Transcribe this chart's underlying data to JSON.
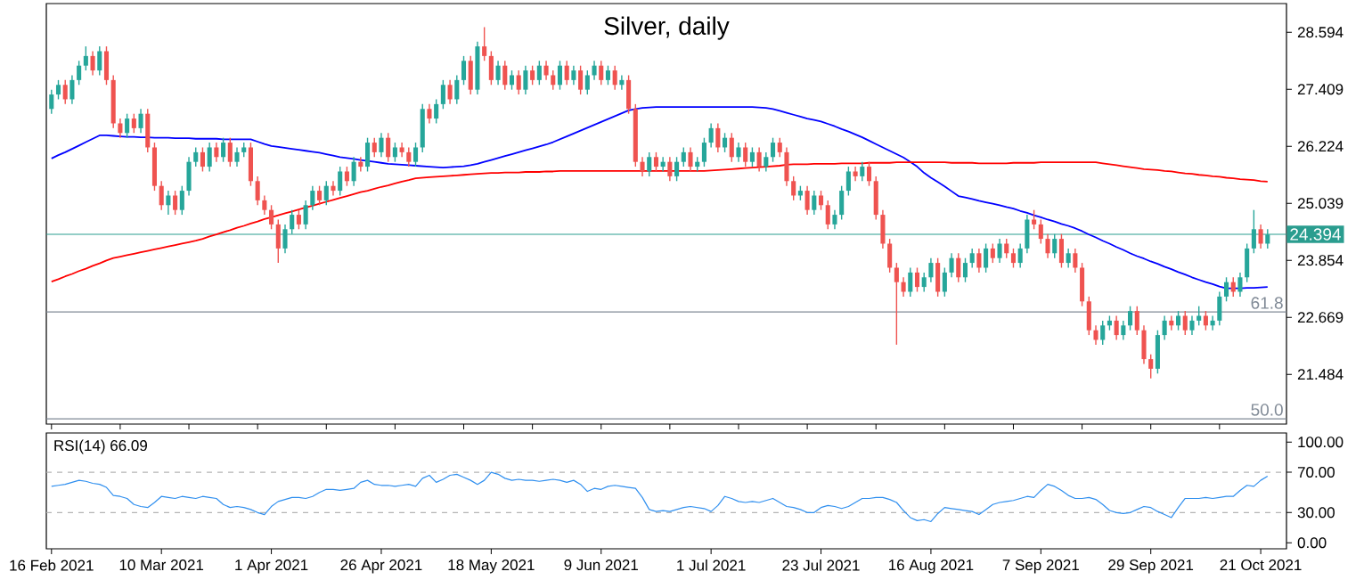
{
  "chart_data": [
    {
      "type": "candlestick",
      "title": "Silver, daily",
      "categories": [
        null,
        null,
        null,
        null,
        null,
        null,
        null,
        null,
        null,
        null,
        null,
        null,
        null,
        null,
        null,
        null,
        null,
        null,
        null,
        null,
        null,
        null,
        null,
        null,
        null,
        null,
        null,
        null,
        null,
        null,
        null,
        null,
        null,
        null,
        null,
        null,
        null,
        null,
        null,
        null,
        null,
        null,
        null,
        null,
        null,
        null,
        null,
        null,
        null,
        null,
        null,
        null,
        null,
        null,
        null,
        null,
        null,
        null,
        null,
        null,
        null,
        null,
        null,
        null,
        null,
        null,
        null,
        null,
        null,
        null,
        null,
        null,
        null,
        null,
        null,
        null,
        null,
        null,
        null,
        null,
        null,
        null,
        null,
        null,
        null,
        null,
        null,
        null,
        null,
        null,
        null,
        null,
        null,
        null,
        null,
        null,
        null,
        null,
        null,
        null,
        null,
        null,
        null,
        null,
        null,
        null,
        null,
        null,
        null,
        null,
        null,
        null,
        null,
        null,
        null,
        null,
        null,
        null,
        null,
        null,
        null,
        null,
        null,
        null,
        null,
        null,
        null,
        null,
        null,
        null,
        null,
        null,
        null,
        null,
        null,
        null,
        null,
        null,
        null,
        null,
        null,
        null,
        null,
        null,
        null,
        null,
        null,
        null,
        null,
        null,
        null,
        null,
        null,
        null,
        null,
        null,
        null,
        null,
        null,
        null,
        null,
        null,
        null,
        null,
        null,
        null,
        null,
        null,
        null,
        null,
        null,
        null,
        null,
        null,
        null,
        null,
        null,
        null
      ],
      "ohlc": [
        [
          27.0,
          27.4,
          26.9,
          27.3
        ],
        [
          27.3,
          27.6,
          27.2,
          27.5
        ],
        [
          27.5,
          27.6,
          27.1,
          27.2
        ],
        [
          27.2,
          27.7,
          27.1,
          27.6
        ],
        [
          27.6,
          28.0,
          27.5,
          27.9
        ],
        [
          27.9,
          28.3,
          27.8,
          28.1
        ],
        [
          28.1,
          28.2,
          27.7,
          27.8
        ],
        [
          27.8,
          28.3,
          27.7,
          28.2
        ],
        [
          28.2,
          28.3,
          27.5,
          27.6
        ],
        [
          27.6,
          27.7,
          26.6,
          26.7
        ],
        [
          26.7,
          26.8,
          26.4,
          26.5
        ],
        [
          26.5,
          26.9,
          26.4,
          26.8
        ],
        [
          26.8,
          26.9,
          26.5,
          26.6
        ],
        [
          26.6,
          27.0,
          26.5,
          26.9
        ],
        [
          26.9,
          27.0,
          26.1,
          26.2
        ],
        [
          26.2,
          26.3,
          25.3,
          25.4
        ],
        [
          25.4,
          25.5,
          24.9,
          25.0
        ],
        [
          25.0,
          25.3,
          24.8,
          25.2
        ],
        [
          25.2,
          25.3,
          24.8,
          24.9
        ],
        [
          24.9,
          25.4,
          24.8,
          25.3
        ],
        [
          25.3,
          26.0,
          25.2,
          25.9
        ],
        [
          25.9,
          26.2,
          25.8,
          26.1
        ],
        [
          26.1,
          26.2,
          25.7,
          25.8
        ],
        [
          25.8,
          26.3,
          25.7,
          26.2
        ],
        [
          26.2,
          26.3,
          25.9,
          26.0
        ],
        [
          26.0,
          26.4,
          25.9,
          26.3
        ],
        [
          26.3,
          26.4,
          25.8,
          25.9
        ],
        [
          25.9,
          26.2,
          25.8,
          26.1
        ],
        [
          26.1,
          26.3,
          26.0,
          26.2
        ],
        [
          26.2,
          26.3,
          25.4,
          25.5
        ],
        [
          25.5,
          25.6,
          25.0,
          25.1
        ],
        [
          25.1,
          25.2,
          24.8,
          24.9
        ],
        [
          24.9,
          25.0,
          24.5,
          24.6
        ],
        [
          24.6,
          24.7,
          23.8,
          24.1
        ],
        [
          24.1,
          24.6,
          24.0,
          24.5
        ],
        [
          24.5,
          24.9,
          24.4,
          24.8
        ],
        [
          24.8,
          24.9,
          24.5,
          24.6
        ],
        [
          24.6,
          25.1,
          24.5,
          25.0
        ],
        [
          25.0,
          25.4,
          24.9,
          25.3
        ],
        [
          25.3,
          25.4,
          25.0,
          25.1
        ],
        [
          25.1,
          25.5,
          25.0,
          25.4
        ],
        [
          25.4,
          25.5,
          25.2,
          25.3
        ],
        [
          25.3,
          25.8,
          25.2,
          25.7
        ],
        [
          25.7,
          25.8,
          25.4,
          25.5
        ],
        [
          25.5,
          26.0,
          25.4,
          25.9
        ],
        [
          25.9,
          26.0,
          25.7,
          25.8
        ],
        [
          25.8,
          26.4,
          25.7,
          26.3
        ],
        [
          26.3,
          26.4,
          26.0,
          26.1
        ],
        [
          26.1,
          26.5,
          26.0,
          26.4
        ],
        [
          26.4,
          26.5,
          25.9,
          26.0
        ],
        [
          26.0,
          26.3,
          25.9,
          26.2
        ],
        [
          26.2,
          26.3,
          26.0,
          26.1
        ],
        [
          26.1,
          26.2,
          25.8,
          25.9
        ],
        [
          25.9,
          26.3,
          25.8,
          26.2
        ],
        [
          26.2,
          27.1,
          26.1,
          27.0
        ],
        [
          27.0,
          27.1,
          26.7,
          26.8
        ],
        [
          26.8,
          27.2,
          26.7,
          27.1
        ],
        [
          27.1,
          27.6,
          27.0,
          27.5
        ],
        [
          27.5,
          27.6,
          27.1,
          27.2
        ],
        [
          27.2,
          27.7,
          27.1,
          27.6
        ],
        [
          27.6,
          28.1,
          27.5,
          28.0
        ],
        [
          28.0,
          28.1,
          27.3,
          27.4
        ],
        [
          27.4,
          28.4,
          27.3,
          28.3
        ],
        [
          28.3,
          28.7,
          28.0,
          28.1
        ],
        [
          28.1,
          28.2,
          27.5,
          27.6
        ],
        [
          27.6,
          28.0,
          27.5,
          27.9
        ],
        [
          27.9,
          28.0,
          27.4,
          27.5
        ],
        [
          27.5,
          27.8,
          27.4,
          27.7
        ],
        [
          27.7,
          27.8,
          27.3,
          27.4
        ],
        [
          27.4,
          27.9,
          27.3,
          27.8
        ],
        [
          27.8,
          27.9,
          27.5,
          27.6
        ],
        [
          27.6,
          28.0,
          27.5,
          27.9
        ],
        [
          27.9,
          28.0,
          27.6,
          27.7
        ],
        [
          27.7,
          27.8,
          27.4,
          27.5
        ],
        [
          27.5,
          28.0,
          27.4,
          27.9
        ],
        [
          27.9,
          28.0,
          27.5,
          27.6
        ],
        [
          27.6,
          27.9,
          27.5,
          27.8
        ],
        [
          27.8,
          27.9,
          27.3,
          27.4
        ],
        [
          27.4,
          27.8,
          27.3,
          27.7
        ],
        [
          27.7,
          28.0,
          27.6,
          27.9
        ],
        [
          27.9,
          28.0,
          27.5,
          27.6
        ],
        [
          27.6,
          27.9,
          27.5,
          27.8
        ],
        [
          27.8,
          27.9,
          27.4,
          27.5
        ],
        [
          27.5,
          27.7,
          27.4,
          27.6
        ],
        [
          27.6,
          27.7,
          26.9,
          27.0
        ],
        [
          27.0,
          27.1,
          25.8,
          25.9
        ],
        [
          25.9,
          26.0,
          25.6,
          25.7
        ],
        [
          25.7,
          26.1,
          25.6,
          26.0
        ],
        [
          26.0,
          26.1,
          25.7,
          25.8
        ],
        [
          25.8,
          26.0,
          25.7,
          25.9
        ],
        [
          25.9,
          26.0,
          25.5,
          25.6
        ],
        [
          25.6,
          26.0,
          25.5,
          25.9
        ],
        [
          25.9,
          26.2,
          25.8,
          26.1
        ],
        [
          26.1,
          26.2,
          25.7,
          25.8
        ],
        [
          25.8,
          26.0,
          25.7,
          25.9
        ],
        [
          25.9,
          26.4,
          25.8,
          26.3
        ],
        [
          26.3,
          26.7,
          26.2,
          26.6
        ],
        [
          26.6,
          26.7,
          26.1,
          26.2
        ],
        [
          26.2,
          26.5,
          26.1,
          26.4
        ],
        [
          26.4,
          26.5,
          25.9,
          26.0
        ],
        [
          26.0,
          26.3,
          25.9,
          26.2
        ],
        [
          26.2,
          26.3,
          25.8,
          25.9
        ],
        [
          25.9,
          26.2,
          25.8,
          26.1
        ],
        [
          26.1,
          26.2,
          25.7,
          25.8
        ],
        [
          25.8,
          26.1,
          25.7,
          26.0
        ],
        [
          26.0,
          26.4,
          25.9,
          26.3
        ],
        [
          26.3,
          26.4,
          26.0,
          26.1
        ],
        [
          26.1,
          26.2,
          25.4,
          25.5
        ],
        [
          25.5,
          25.6,
          25.1,
          25.2
        ],
        [
          25.2,
          25.4,
          25.1,
          25.3
        ],
        [
          25.3,
          25.4,
          24.8,
          24.9
        ],
        [
          24.9,
          25.3,
          24.8,
          25.2
        ],
        [
          25.2,
          25.3,
          24.9,
          25.0
        ],
        [
          25.0,
          25.1,
          24.5,
          24.6
        ],
        [
          24.6,
          24.9,
          24.5,
          24.8
        ],
        [
          24.8,
          25.4,
          24.7,
          25.3
        ],
        [
          25.3,
          25.8,
          25.2,
          25.7
        ],
        [
          25.7,
          25.8,
          25.5,
          25.6
        ],
        [
          25.6,
          25.9,
          25.5,
          25.8
        ],
        [
          25.8,
          25.9,
          25.4,
          25.5
        ],
        [
          25.5,
          25.6,
          24.7,
          24.8
        ],
        [
          24.8,
          24.9,
          24.1,
          24.2
        ],
        [
          24.2,
          24.3,
          23.6,
          23.7
        ],
        [
          23.7,
          23.8,
          22.1,
          23.4
        ],
        [
          23.4,
          23.5,
          23.1,
          23.2
        ],
        [
          23.2,
          23.7,
          23.1,
          23.6
        ],
        [
          23.6,
          23.7,
          23.2,
          23.3
        ],
        [
          23.3,
          23.6,
          23.2,
          23.5
        ],
        [
          23.5,
          23.9,
          23.4,
          23.8
        ],
        [
          23.8,
          23.9,
          23.1,
          23.2
        ],
        [
          23.2,
          23.7,
          23.1,
          23.6
        ],
        [
          23.6,
          24.0,
          23.5,
          23.9
        ],
        [
          23.9,
          24.0,
          23.4,
          23.5
        ],
        [
          23.5,
          23.9,
          23.4,
          23.8
        ],
        [
          23.8,
          24.1,
          23.7,
          24.0
        ],
        [
          24.0,
          24.1,
          23.6,
          23.7
        ],
        [
          23.7,
          24.2,
          23.6,
          24.1
        ],
        [
          24.1,
          24.2,
          23.8,
          23.9
        ],
        [
          23.9,
          24.3,
          23.8,
          24.2
        ],
        [
          24.2,
          24.3,
          23.9,
          24.0
        ],
        [
          24.0,
          24.1,
          23.7,
          23.8
        ],
        [
          23.8,
          24.2,
          23.7,
          24.1
        ],
        [
          24.1,
          24.8,
          24.0,
          24.7
        ],
        [
          24.7,
          24.9,
          24.5,
          24.6
        ],
        [
          24.6,
          24.7,
          24.2,
          24.3
        ],
        [
          24.3,
          24.4,
          23.9,
          24.0
        ],
        [
          24.0,
          24.4,
          23.9,
          24.3
        ],
        [
          24.3,
          24.4,
          23.7,
          23.8
        ],
        [
          23.8,
          24.1,
          23.7,
          24.0
        ],
        [
          24.0,
          24.1,
          23.6,
          23.7
        ],
        [
          23.7,
          23.8,
          22.9,
          23.0
        ],
        [
          23.0,
          23.1,
          22.3,
          22.4
        ],
        [
          22.4,
          22.5,
          22.1,
          22.2
        ],
        [
          22.2,
          22.6,
          22.1,
          22.5
        ],
        [
          22.5,
          22.7,
          22.4,
          22.6
        ],
        [
          22.6,
          22.7,
          22.2,
          22.3
        ],
        [
          22.3,
          22.6,
          22.2,
          22.5
        ],
        [
          22.5,
          22.9,
          22.4,
          22.8
        ],
        [
          22.8,
          22.9,
          22.3,
          22.4
        ],
        [
          22.4,
          22.5,
          21.7,
          21.8
        ],
        [
          21.8,
          21.9,
          21.4,
          21.6
        ],
        [
          21.6,
          22.4,
          21.5,
          22.3
        ],
        [
          22.3,
          22.7,
          22.2,
          22.6
        ],
        [
          22.6,
          22.7,
          22.4,
          22.5
        ],
        [
          22.5,
          22.8,
          22.4,
          22.7
        ],
        [
          22.7,
          22.8,
          22.3,
          22.4
        ],
        [
          22.4,
          22.7,
          22.3,
          22.6
        ],
        [
          22.6,
          22.9,
          22.5,
          22.7
        ],
        [
          22.7,
          22.8,
          22.4,
          22.5
        ],
        [
          22.5,
          22.7,
          22.4,
          22.6
        ],
        [
          22.6,
          23.2,
          22.5,
          23.1
        ],
        [
          23.1,
          23.5,
          23.0,
          23.4
        ],
        [
          23.4,
          23.5,
          23.1,
          23.2
        ],
        [
          23.2,
          23.6,
          23.1,
          23.5
        ],
        [
          23.5,
          24.2,
          23.4,
          24.1
        ],
        [
          24.1,
          24.9,
          24.0,
          24.5
        ],
        [
          24.5,
          24.6,
          24.1,
          24.2
        ],
        [
          24.2,
          24.5,
          24.1,
          24.39
        ]
      ],
      "colors": [
        "#26a69a",
        "#26a69a",
        "#ef5350",
        "#26a69a",
        "#26a69a",
        "#26a69a",
        "#ef5350",
        "#26a69a",
        "#ef5350",
        "#ef5350",
        "#ef5350",
        "#26a69a",
        "#ef5350",
        "#26a69a",
        "#ef5350",
        "#ef5350",
        "#ef5350",
        "#26a69a",
        "#ef5350",
        "#26a69a",
        "#26a69a",
        "#26a69a",
        "#ef5350",
        "#26a69a",
        "#ef5350",
        "#26a69a",
        "#ef5350",
        "#26a69a",
        "#26a69a",
        "#ef5350",
        "#ef5350",
        "#ef5350",
        "#ef5350",
        "#ef5350",
        "#26a69a",
        "#26a69a",
        "#ef5350",
        "#26a69a",
        "#26a69a",
        "#ef5350",
        "#26a69a",
        "#ef5350",
        "#26a69a",
        "#ef5350",
        "#26a69a",
        "#ef5350",
        "#26a69a",
        "#ef5350",
        "#26a69a",
        "#ef5350",
        "#26a69a",
        "#ef5350",
        "#ef5350",
        "#26a69a",
        "#26a69a",
        "#ef5350",
        "#26a69a",
        "#26a69a",
        "#ef5350",
        "#26a69a",
        "#26a69a",
        "#ef5350",
        "#26a69a",
        "#ef5350",
        "#ef5350",
        "#26a69a",
        "#ef5350",
        "#26a69a",
        "#ef5350",
        "#26a69a",
        "#ef5350",
        "#26a69a",
        "#ef5350",
        "#ef5350",
        "#26a69a",
        "#ef5350",
        "#26a69a",
        "#ef5350",
        "#26a69a",
        "#26a69a",
        "#ef5350",
        "#26a69a",
        "#ef5350",
        "#26a69a",
        "#ef5350",
        "#ef5350",
        "#ef5350",
        "#26a69a",
        "#ef5350",
        "#26a69a",
        "#ef5350",
        "#26a69a",
        "#26a69a",
        "#ef5350",
        "#26a69a",
        "#26a69a",
        "#26a69a",
        "#ef5350",
        "#26a69a",
        "#ef5350",
        "#26a69a",
        "#ef5350",
        "#26a69a",
        "#ef5350",
        "#26a69a",
        "#26a69a",
        "#ef5350",
        "#ef5350",
        "#ef5350",
        "#26a69a",
        "#ef5350",
        "#26a69a",
        "#ef5350",
        "#ef5350",
        "#26a69a",
        "#26a69a",
        "#26a69a",
        "#ef5350",
        "#26a69a",
        "#ef5350",
        "#ef5350",
        "#ef5350",
        "#ef5350",
        "#ef5350",
        "#ef5350",
        "#26a69a",
        "#ef5350",
        "#26a69a",
        "#26a69a",
        "#ef5350",
        "#26a69a",
        "#26a69a",
        "#ef5350",
        "#26a69a",
        "#26a69a",
        "#ef5350",
        "#26a69a",
        "#ef5350",
        "#26a69a",
        "#ef5350",
        "#ef5350",
        "#26a69a",
        "#26a69a",
        "#ef5350",
        "#ef5350",
        "#ef5350",
        "#26a69a",
        "#ef5350",
        "#26a69a",
        "#ef5350",
        "#ef5350",
        "#ef5350",
        "#ef5350",
        "#26a69a",
        "#26a69a",
        "#ef5350",
        "#26a69a",
        "#26a69a",
        "#ef5350",
        "#ef5350",
        "#ef5350",
        "#26a69a",
        "#26a69a",
        "#ef5350",
        "#26a69a",
        "#ef5350",
        "#26a69a",
        "#26a69a",
        "#ef5350",
        "#26a69a",
        "#26a69a",
        "#26a69a",
        "#ef5350",
        "#26a69a",
        "#26a69a",
        "#26a69a",
        "#ef5350",
        "#26a69a"
      ],
      "series": [
        {
          "type": "line",
          "color": "#0000ff",
          "values": [
            25.97,
            26.04,
            26.1,
            26.17,
            26.24,
            26.31,
            26.38,
            26.45,
            26.45,
            26.44,
            26.43,
            26.42,
            26.42,
            26.41,
            26.41,
            26.4,
            26.4,
            26.4,
            26.39,
            26.39,
            26.39,
            26.38,
            26.38,
            26.38,
            26.38,
            26.37,
            26.37,
            26.37,
            26.37,
            26.37,
            26.32,
            26.27,
            26.23,
            26.21,
            26.19,
            26.17,
            26.15,
            26.13,
            26.11,
            26.09,
            26.06,
            26.03,
            26.0,
            25.98,
            25.96,
            25.94,
            25.92,
            25.9,
            25.88,
            25.86,
            25.85,
            25.84,
            25.83,
            25.82,
            25.81,
            25.8,
            25.79,
            25.78,
            25.79,
            25.8,
            25.81,
            25.83,
            25.86,
            25.9,
            25.94,
            25.98,
            26.02,
            26.06,
            26.1,
            26.14,
            26.18,
            26.22,
            26.26,
            26.31,
            26.37,
            26.43,
            26.49,
            26.55,
            26.61,
            26.67,
            26.73,
            26.79,
            26.85,
            26.91,
            26.97,
            27.0,
            27.02,
            27.03,
            27.04,
            27.04,
            27.04,
            27.04,
            27.04,
            27.04,
            27.04,
            27.04,
            27.04,
            27.04,
            27.04,
            27.04,
            27.04,
            27.04,
            27.04,
            27.03,
            27.02,
            27.0,
            26.96,
            26.92,
            26.88,
            26.84,
            26.8,
            26.77,
            26.74,
            26.69,
            26.64,
            26.58,
            26.53,
            26.47,
            26.41,
            26.34,
            26.27,
            26.2,
            26.13,
            26.06,
            25.99,
            25.9,
            25.8,
            25.67,
            25.57,
            25.48,
            25.39,
            25.29,
            25.19,
            25.16,
            25.13,
            25.09,
            25.06,
            25.03,
            25.0,
            24.96,
            24.93,
            24.88,
            24.84,
            24.79,
            24.75,
            24.7,
            24.66,
            24.61,
            24.57,
            24.52,
            24.46,
            24.39,
            24.33,
            24.26,
            24.2,
            24.13,
            24.07,
            24.0,
            23.94,
            23.89,
            23.83,
            23.78,
            23.72,
            23.67,
            23.61,
            23.56,
            23.5,
            23.45,
            23.4,
            23.36,
            23.31,
            23.27,
            23.27,
            23.27,
            23.28,
            23.28,
            23.29,
            23.3
          ]
        },
        {
          "type": "line",
          "color": "#ff0000",
          "values": [
            23.41,
            23.46,
            23.52,
            23.57,
            23.63,
            23.68,
            23.74,
            23.79,
            23.85,
            23.9,
            23.93,
            23.96,
            23.99,
            24.02,
            24.05,
            24.08,
            24.11,
            24.14,
            24.17,
            24.2,
            24.23,
            24.26,
            24.3,
            24.35,
            24.39,
            24.44,
            24.48,
            24.53,
            24.57,
            24.62,
            24.66,
            24.71,
            24.75,
            24.79,
            24.83,
            24.87,
            24.91,
            24.95,
            24.99,
            25.03,
            25.07,
            25.11,
            25.15,
            25.19,
            25.23,
            25.27,
            25.3,
            25.34,
            25.38,
            25.41,
            25.45,
            25.49,
            25.52,
            25.56,
            25.57,
            25.58,
            25.59,
            25.6,
            25.61,
            25.62,
            25.63,
            25.64,
            25.65,
            25.66,
            25.67,
            25.67,
            25.68,
            25.68,
            25.68,
            25.69,
            25.69,
            25.69,
            25.7,
            25.7,
            25.71,
            25.71,
            25.71,
            25.71,
            25.71,
            25.71,
            25.71,
            25.71,
            25.71,
            25.71,
            25.71,
            25.71,
            25.71,
            25.71,
            25.71,
            25.71,
            25.71,
            25.71,
            25.71,
            25.71,
            25.71,
            25.71,
            25.72,
            25.73,
            25.74,
            25.75,
            25.76,
            25.77,
            25.78,
            25.79,
            25.8,
            25.81,
            25.82,
            25.84,
            25.85,
            25.85,
            25.85,
            25.86,
            25.86,
            25.86,
            25.86,
            25.87,
            25.87,
            25.87,
            25.87,
            25.88,
            25.88,
            25.88,
            25.88,
            25.89,
            25.89,
            25.89,
            25.89,
            25.89,
            25.89,
            25.89,
            25.89,
            25.88,
            25.88,
            25.88,
            25.88,
            25.87,
            25.87,
            25.87,
            25.87,
            25.87,
            25.88,
            25.88,
            25.88,
            25.88,
            25.89,
            25.89,
            25.89,
            25.89,
            25.89,
            25.89,
            25.89,
            25.89,
            25.89,
            25.87,
            25.85,
            25.83,
            25.81,
            25.79,
            25.77,
            25.75,
            25.74,
            25.73,
            25.71,
            25.7,
            25.68,
            25.66,
            25.65,
            25.63,
            25.62,
            25.6,
            25.59,
            25.57,
            25.56,
            25.54,
            25.53,
            25.52,
            25.5,
            25.49
          ]
        }
      ],
      "ylim": [
        20.45,
        29.19
      ],
      "yticks": [
        28.594,
        27.409,
        26.224,
        25.039,
        23.854,
        22.669,
        21.484
      ],
      "ref_lines": [
        {
          "axis": "y",
          "value": 24.394,
          "label": "24.394",
          "color": "#2a9d8f"
        },
        {
          "axis": "y",
          "value": 22.78,
          "color": "#808a96"
        },
        {
          "axis": "y",
          "value": 20.56,
          "color": "#808a96"
        }
      ],
      "annotations": [
        {
          "text": "61.8",
          "y": 22.78
        },
        {
          "text": "50.0",
          "y": 20.56
        }
      ]
    },
    {
      "type": "line",
      "title": "RSI(14) 66.09",
      "color": "#2f8fef",
      "categories": [
        "16 Feb 2021",
        null,
        null,
        null,
        null,
        null,
        null,
        null,
        null,
        null,
        null,
        null,
        null,
        null,
        null,
        null,
        "10 Mar 2021",
        null,
        null,
        null,
        null,
        null,
        null,
        null,
        null,
        null,
        null,
        null,
        null,
        null,
        null,
        null,
        "1 Apr 2021",
        null,
        null,
        null,
        null,
        null,
        null,
        null,
        null,
        null,
        null,
        null,
        null,
        null,
        null,
        null,
        "26 Apr 2021",
        null,
        null,
        null,
        null,
        null,
        null,
        null,
        null,
        null,
        null,
        null,
        null,
        null,
        null,
        null,
        "18 May 2021",
        null,
        null,
        null,
        null,
        null,
        null,
        null,
        null,
        null,
        null,
        null,
        null,
        null,
        null,
        null,
        "9 Jun 2021",
        null,
        null,
        null,
        null,
        null,
        null,
        null,
        null,
        null,
        null,
        null,
        null,
        null,
        null,
        null,
        "1 Jul 2021",
        null,
        null,
        null,
        null,
        null,
        null,
        null,
        null,
        null,
        null,
        null,
        null,
        null,
        null,
        null,
        "23 Jul 2021",
        null,
        null,
        null,
        null,
        null,
        null,
        null,
        null,
        null,
        null,
        null,
        null,
        null,
        null,
        null,
        "16 Aug 2021",
        null,
        null,
        null,
        null,
        null,
        null,
        null,
        null,
        null,
        null,
        null,
        null,
        null,
        null,
        null,
        "7 Sep 2021",
        null,
        null,
        null,
        null,
        null,
        null,
        null,
        null,
        null,
        null,
        null,
        null,
        null,
        null,
        null,
        "29 Sep 2021",
        null,
        null,
        null,
        null,
        null,
        null,
        null,
        null,
        null,
        null,
        null,
        null,
        null,
        null,
        null,
        "21 Oct 2021",
        null
      ],
      "values": [
        56,
        57,
        58,
        60,
        62,
        61,
        59,
        58,
        55,
        47,
        46,
        44,
        38,
        36,
        35,
        40,
        46,
        45,
        44,
        46,
        45,
        44,
        46,
        45,
        44,
        38,
        35,
        36,
        35,
        33,
        30,
        28,
        36,
        41,
        43,
        45,
        45,
        44,
        46,
        50,
        53,
        53,
        52,
        53,
        54,
        60,
        62,
        58,
        57,
        57,
        56,
        57,
        58,
        56,
        64,
        67,
        60,
        63,
        67,
        68,
        65,
        62,
        58,
        62,
        70,
        68,
        64,
        62,
        63,
        62,
        62,
        61,
        62,
        63,
        62,
        60,
        62,
        58,
        51,
        54,
        53,
        56,
        57,
        56,
        55,
        54,
        45,
        33,
        31,
        32,
        31,
        33,
        35,
        36,
        35,
        34,
        31,
        37,
        46,
        44,
        41,
        40,
        41,
        40,
        42,
        44,
        40,
        36,
        35,
        33,
        30,
        30,
        35,
        37,
        36,
        34,
        36,
        40,
        44,
        44,
        45,
        45,
        43,
        40,
        32,
        25,
        22,
        23,
        21,
        29,
        35,
        34,
        33,
        32,
        31,
        28,
        33,
        38,
        40,
        41,
        42,
        44,
        46,
        45,
        52,
        58,
        56,
        52,
        47,
        44,
        44,
        45,
        43,
        38,
        32,
        30,
        29,
        30,
        33,
        36,
        35,
        31,
        28,
        25,
        35,
        44,
        44,
        44,
        45,
        44,
        45,
        46,
        46,
        52,
        57,
        56,
        62,
        66.09
      ],
      "ylim": [
        -6,
        109
      ],
      "yticks": [
        {
          "value": 100,
          "label": "100.00"
        },
        {
          "value": 70,
          "label": "70.00"
        },
        {
          "value": 30,
          "label": "30.00"
        },
        {
          "value": 0,
          "label": "0.00"
        }
      ],
      "ref_lines": [
        {
          "axis": "y",
          "value": 70,
          "color": "#b4b4b4",
          "line_style": "dashed"
        },
        {
          "axis": "y",
          "value": 30,
          "color": "#b4b4b4",
          "line_style": "dashed"
        }
      ]
    }
  ]
}
